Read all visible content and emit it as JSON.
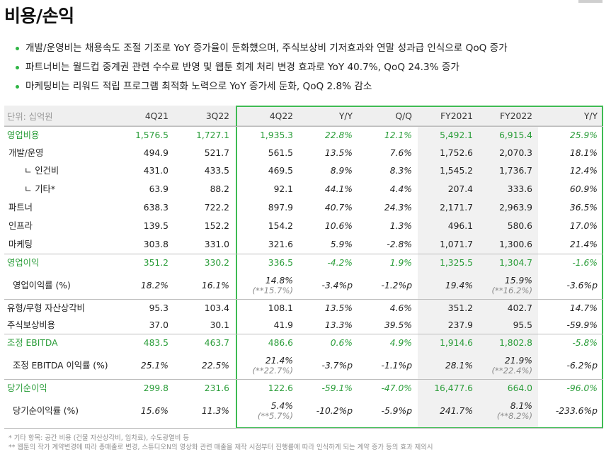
{
  "title": "비용/손익",
  "bullets": [
    "개발/운영비는 채용속도 조절 기조로 YoY 증가율이 둔화했으며, 주식보상비 기저효과와 연말 성과급 인식으로 QoQ 증가",
    "파트너비는 월드컵 중계권 관련 수수료 반영 및 웹툰 회계 처리 변경 효과로 YoY 40.7%, QoQ 24.3% 증가",
    "마케팅비는 리워드 적립 프로그램 최적화 노력으로 YoY 증가세 둔화, QoQ 2.8% 감소"
  ],
  "colors": {
    "accent_green": "#2a9d39",
    "box_green": "#3fbb53",
    "header_gray": "#efefef",
    "fy_gray": "#f1f1f1"
  },
  "table": {
    "unit": "단위: 십억원",
    "headers": [
      "4Q21",
      "3Q22",
      "4Q22",
      "Y/Y",
      "Q/Q",
      "FY2021",
      "FY2022",
      "Y/Y"
    ],
    "rows": [
      {
        "label": "영업비용",
        "values": [
          "1,576.5",
          "1,727.1",
          "1,935.3",
          "22.8%",
          "12.1%",
          "5,492.1",
          "6,915.4",
          "25.9%"
        ],
        "subs": [
          "",
          "",
          "",
          "",
          "",
          "",
          "",
          ""
        ]
      },
      {
        "label": "개발/운영",
        "values": [
          "494.9",
          "521.7",
          "561.5",
          "13.5%",
          "7.6%",
          "1,752.6",
          "2,070.3",
          "18.1%"
        ],
        "subs": [
          "",
          "",
          "",
          "",
          "",
          "",
          "",
          ""
        ]
      },
      {
        "label": "ㄴ 인건비",
        "values": [
          "431.0",
          "433.5",
          "469.5",
          "8.9%",
          "8.3%",
          "1,545.2",
          "1,736.7",
          "12.4%"
        ],
        "subs": [
          "",
          "",
          "",
          "",
          "",
          "",
          "",
          ""
        ]
      },
      {
        "label": "ㄴ 기타*",
        "values": [
          "63.9",
          "88.2",
          "92.1",
          "44.1%",
          "4.4%",
          "207.4",
          "333.6",
          "60.9%"
        ],
        "subs": [
          "",
          "",
          "",
          "",
          "",
          "",
          "",
          ""
        ]
      },
      {
        "label": "파트너",
        "values": [
          "638.3",
          "722.2",
          "897.9",
          "40.7%",
          "24.3%",
          "2,171.7",
          "2,963.9",
          "36.5%"
        ],
        "subs": [
          "",
          "",
          "",
          "",
          "",
          "",
          "",
          ""
        ]
      },
      {
        "label": "인프라",
        "values": [
          "139.5",
          "152.2",
          "154.2",
          "10.6%",
          "1.3%",
          "496.1",
          "580.6",
          "17.0%"
        ],
        "subs": [
          "",
          "",
          "",
          "",
          "",
          "",
          "",
          ""
        ]
      },
      {
        "label": "마케팅",
        "values": [
          "303.8",
          "331.0",
          "321.6",
          "5.9%",
          "-2.8%",
          "1,071.7",
          "1,300.6",
          "21.4%"
        ],
        "subs": [
          "",
          "",
          "",
          "",
          "",
          "",
          "",
          ""
        ]
      },
      {
        "label": "영업이익",
        "values": [
          "351.2",
          "330.2",
          "336.5",
          "-4.2%",
          "1.9%",
          "1,325.5",
          "1,304.7",
          "-1.6%"
        ],
        "subs": [
          "",
          "",
          "",
          "",
          "",
          "",
          "",
          ""
        ]
      },
      {
        "label": "영업이익률 (%)",
        "values": [
          "18.2%",
          "16.1%",
          "14.8%",
          "-3.4%p",
          "-1.2%p",
          "19.4%",
          "15.9%",
          "-3.6%p"
        ],
        "subs": [
          "",
          "",
          "(**15.7%)",
          "",
          "",
          "",
          "(**16.2%)",
          ""
        ]
      },
      {
        "label": "유형/무형 자산상각비",
        "values": [
          "95.3",
          "103.4",
          "108.1",
          "13.5%",
          "4.6%",
          "351.2",
          "402.7",
          "14.7%"
        ],
        "subs": [
          "",
          "",
          "",
          "",
          "",
          "",
          "",
          ""
        ]
      },
      {
        "label": "주식보상비용",
        "values": [
          "37.0",
          "30.1",
          "41.9",
          "13.3%",
          "39.5%",
          "237.9",
          "95.5",
          "-59.9%"
        ],
        "subs": [
          "",
          "",
          "",
          "",
          "",
          "",
          "",
          ""
        ]
      },
      {
        "label": "조정 EBITDA",
        "values": [
          "483.5",
          "463.7",
          "486.6",
          "0.6%",
          "4.9%",
          "1,914.6",
          "1,802.8",
          "-5.8%"
        ],
        "subs": [
          "",
          "",
          "",
          "",
          "",
          "",
          "",
          ""
        ]
      },
      {
        "label": "조정 EBITDA 이익률 (%)",
        "values": [
          "25.1%",
          "22.5%",
          "21.4%",
          "-3.7%p",
          "-1.1%p",
          "28.1%",
          "21.9%",
          "-6.2%p"
        ],
        "subs": [
          "",
          "",
          "(**22.7%)",
          "",
          "",
          "",
          "(**22.4%)",
          ""
        ]
      },
      {
        "label": "당기순이익",
        "values": [
          "299.8",
          "231.6",
          "122.6",
          "-59.1%",
          "-47.0%",
          "16,477.6",
          "664.0",
          "-96.0%"
        ],
        "subs": [
          "",
          "",
          "",
          "",
          "",
          "",
          "",
          ""
        ]
      },
      {
        "label": "당기순이익률 (%)",
        "values": [
          "15.6%",
          "11.3%",
          "5.4%",
          "-10.2%p",
          "-5.9%p",
          "241.7%",
          "8.1%",
          "-233.6%p"
        ],
        "subs": [
          "",
          "",
          "(**5.7%)",
          "",
          "",
          "",
          "(**8.2%)",
          ""
        ]
      }
    ]
  },
  "footnotes": [
    "* 기타 항목: 공간 비용 (건물 자산상각비, 임차료), 수도광열비 등",
    "** 웹툰의 작가 계약변경에 따라 총매출로 변경, 스튜디오N의 영상화 관련 매출을 제작 시점부터 진행률에 따라 인식하게 되는 계약 증가 등의 효과 제외시"
  ]
}
